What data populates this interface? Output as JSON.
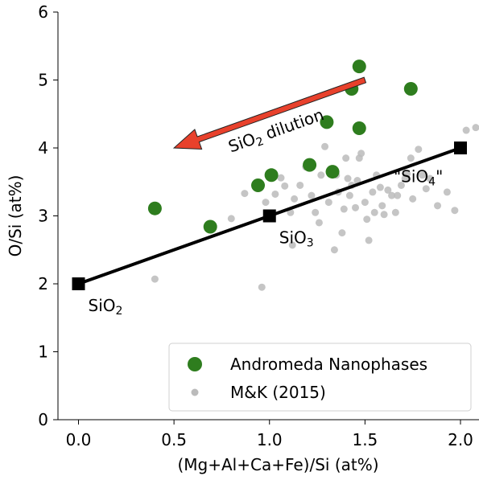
{
  "chart_data": {
    "type": "scatter",
    "title": "",
    "xlabel": "(Mg+Al+Ca+Fe)/Si (at%)",
    "ylabel": "O/Si (at%)",
    "xlim": [
      -0.1,
      2.08
    ],
    "ylim": [
      0,
      6
    ],
    "xticks": [
      0.0,
      0.5,
      1.0,
      1.5,
      2.0
    ],
    "xtick_labels": [
      "0.0",
      "0.5",
      "1.0",
      "1.5",
      "2.0"
    ],
    "yticks": [
      0,
      1,
      2,
      3,
      4,
      5,
      6
    ],
    "ytick_labels": [
      "0",
      "1",
      "2",
      "3",
      "4",
      "5",
      "6"
    ],
    "grid": false,
    "legend_position": "bottom-right",
    "series": [
      {
        "name": "Andromeda Nanophases",
        "color": "#2e7d1e",
        "marker": "circle-large",
        "points": [
          [
            0.4,
            3.11
          ],
          [
            0.69,
            2.84
          ],
          [
            0.94,
            3.45
          ],
          [
            1.01,
            3.6
          ],
          [
            1.21,
            3.75
          ],
          [
            1.3,
            4.38
          ],
          [
            1.33,
            3.65
          ],
          [
            1.43,
            4.87
          ],
          [
            1.47,
            5.2
          ],
          [
            1.47,
            4.29
          ],
          [
            1.74,
            4.87
          ]
        ]
      },
      {
        "name": "M&K (2015)",
        "color": "#bbbbbb",
        "marker": "circle-small",
        "points": [
          [
            0.4,
            2.07
          ],
          [
            0.8,
            2.96
          ],
          [
            0.87,
            3.33
          ],
          [
            0.96,
            1.95
          ],
          [
            0.98,
            3.2
          ],
          [
            1.03,
            3.32
          ],
          [
            1.06,
            3.56
          ],
          [
            1.08,
            3.44
          ],
          [
            1.11,
            3.05
          ],
          [
            1.13,
            3.25
          ],
          [
            1.12,
            2.57
          ],
          [
            1.16,
            3.45
          ],
          [
            1.19,
            3.72
          ],
          [
            1.22,
            3.3
          ],
          [
            1.24,
            3.05
          ],
          [
            1.26,
            2.9
          ],
          [
            1.27,
            3.6
          ],
          [
            1.29,
            4.02
          ],
          [
            1.31,
            3.2
          ],
          [
            1.34,
            2.5
          ],
          [
            1.35,
            3.6
          ],
          [
            1.36,
            3.35
          ],
          [
            1.38,
            2.75
          ],
          [
            1.39,
            3.1
          ],
          [
            1.4,
            3.85
          ],
          [
            1.41,
            3.55
          ],
          [
            1.42,
            3.3
          ],
          [
            1.43,
            3.45
          ],
          [
            1.45,
            3.12
          ],
          [
            1.46,
            3.52
          ],
          [
            1.47,
            3.85
          ],
          [
            1.48,
            3.92
          ],
          [
            1.5,
            3.2
          ],
          [
            1.51,
            2.95
          ],
          [
            1.52,
            2.64
          ],
          [
            1.54,
            3.35
          ],
          [
            1.55,
            3.05
          ],
          [
            1.56,
            3.6
          ],
          [
            1.58,
            3.42
          ],
          [
            1.59,
            3.15
          ],
          [
            1.6,
            3.02
          ],
          [
            1.62,
            3.38
          ],
          [
            1.64,
            3.3
          ],
          [
            1.66,
            3.05
          ],
          [
            1.67,
            3.3
          ],
          [
            1.69,
            3.45
          ],
          [
            1.71,
            3.55
          ],
          [
            1.72,
            3.62
          ],
          [
            1.74,
            3.85
          ],
          [
            1.75,
            3.25
          ],
          [
            1.78,
            3.98
          ],
          [
            1.8,
            3.6
          ],
          [
            1.82,
            3.4
          ],
          [
            1.84,
            3.55
          ],
          [
            1.88,
            3.15
          ],
          [
            1.93,
            3.35
          ],
          [
            1.97,
            3.08
          ],
          [
            2.03,
            4.26
          ],
          [
            2.08,
            4.3
          ]
        ]
      }
    ],
    "line": {
      "points": [
        [
          0.0,
          2.0
        ],
        [
          1.0,
          3.0
        ],
        [
          2.0,
          4.0
        ]
      ],
      "labels": [
        {
          "base": "SiO",
          "sub": "2",
          "pre": "",
          "post": ""
        },
        {
          "base": "SiO",
          "sub": "3",
          "pre": "",
          "post": ""
        },
        {
          "base": "SiO",
          "sub": "4",
          "pre": "\"",
          "post": "\""
        }
      ]
    },
    "arrow": {
      "from": [
        1.5,
        5.0
      ],
      "to": [
        0.5,
        4.0
      ],
      "color": "#e8412c",
      "label": {
        "base": "SiO",
        "sub": "2",
        "post": " dilution"
      }
    },
    "legend": [
      {
        "label": "Andromeda Nanophases",
        "color": "#2e7d1e",
        "marker": "circle-large"
      },
      {
        "label": "M&K (2015)",
        "color": "#bbbbbb",
        "marker": "circle-small"
      }
    ]
  }
}
